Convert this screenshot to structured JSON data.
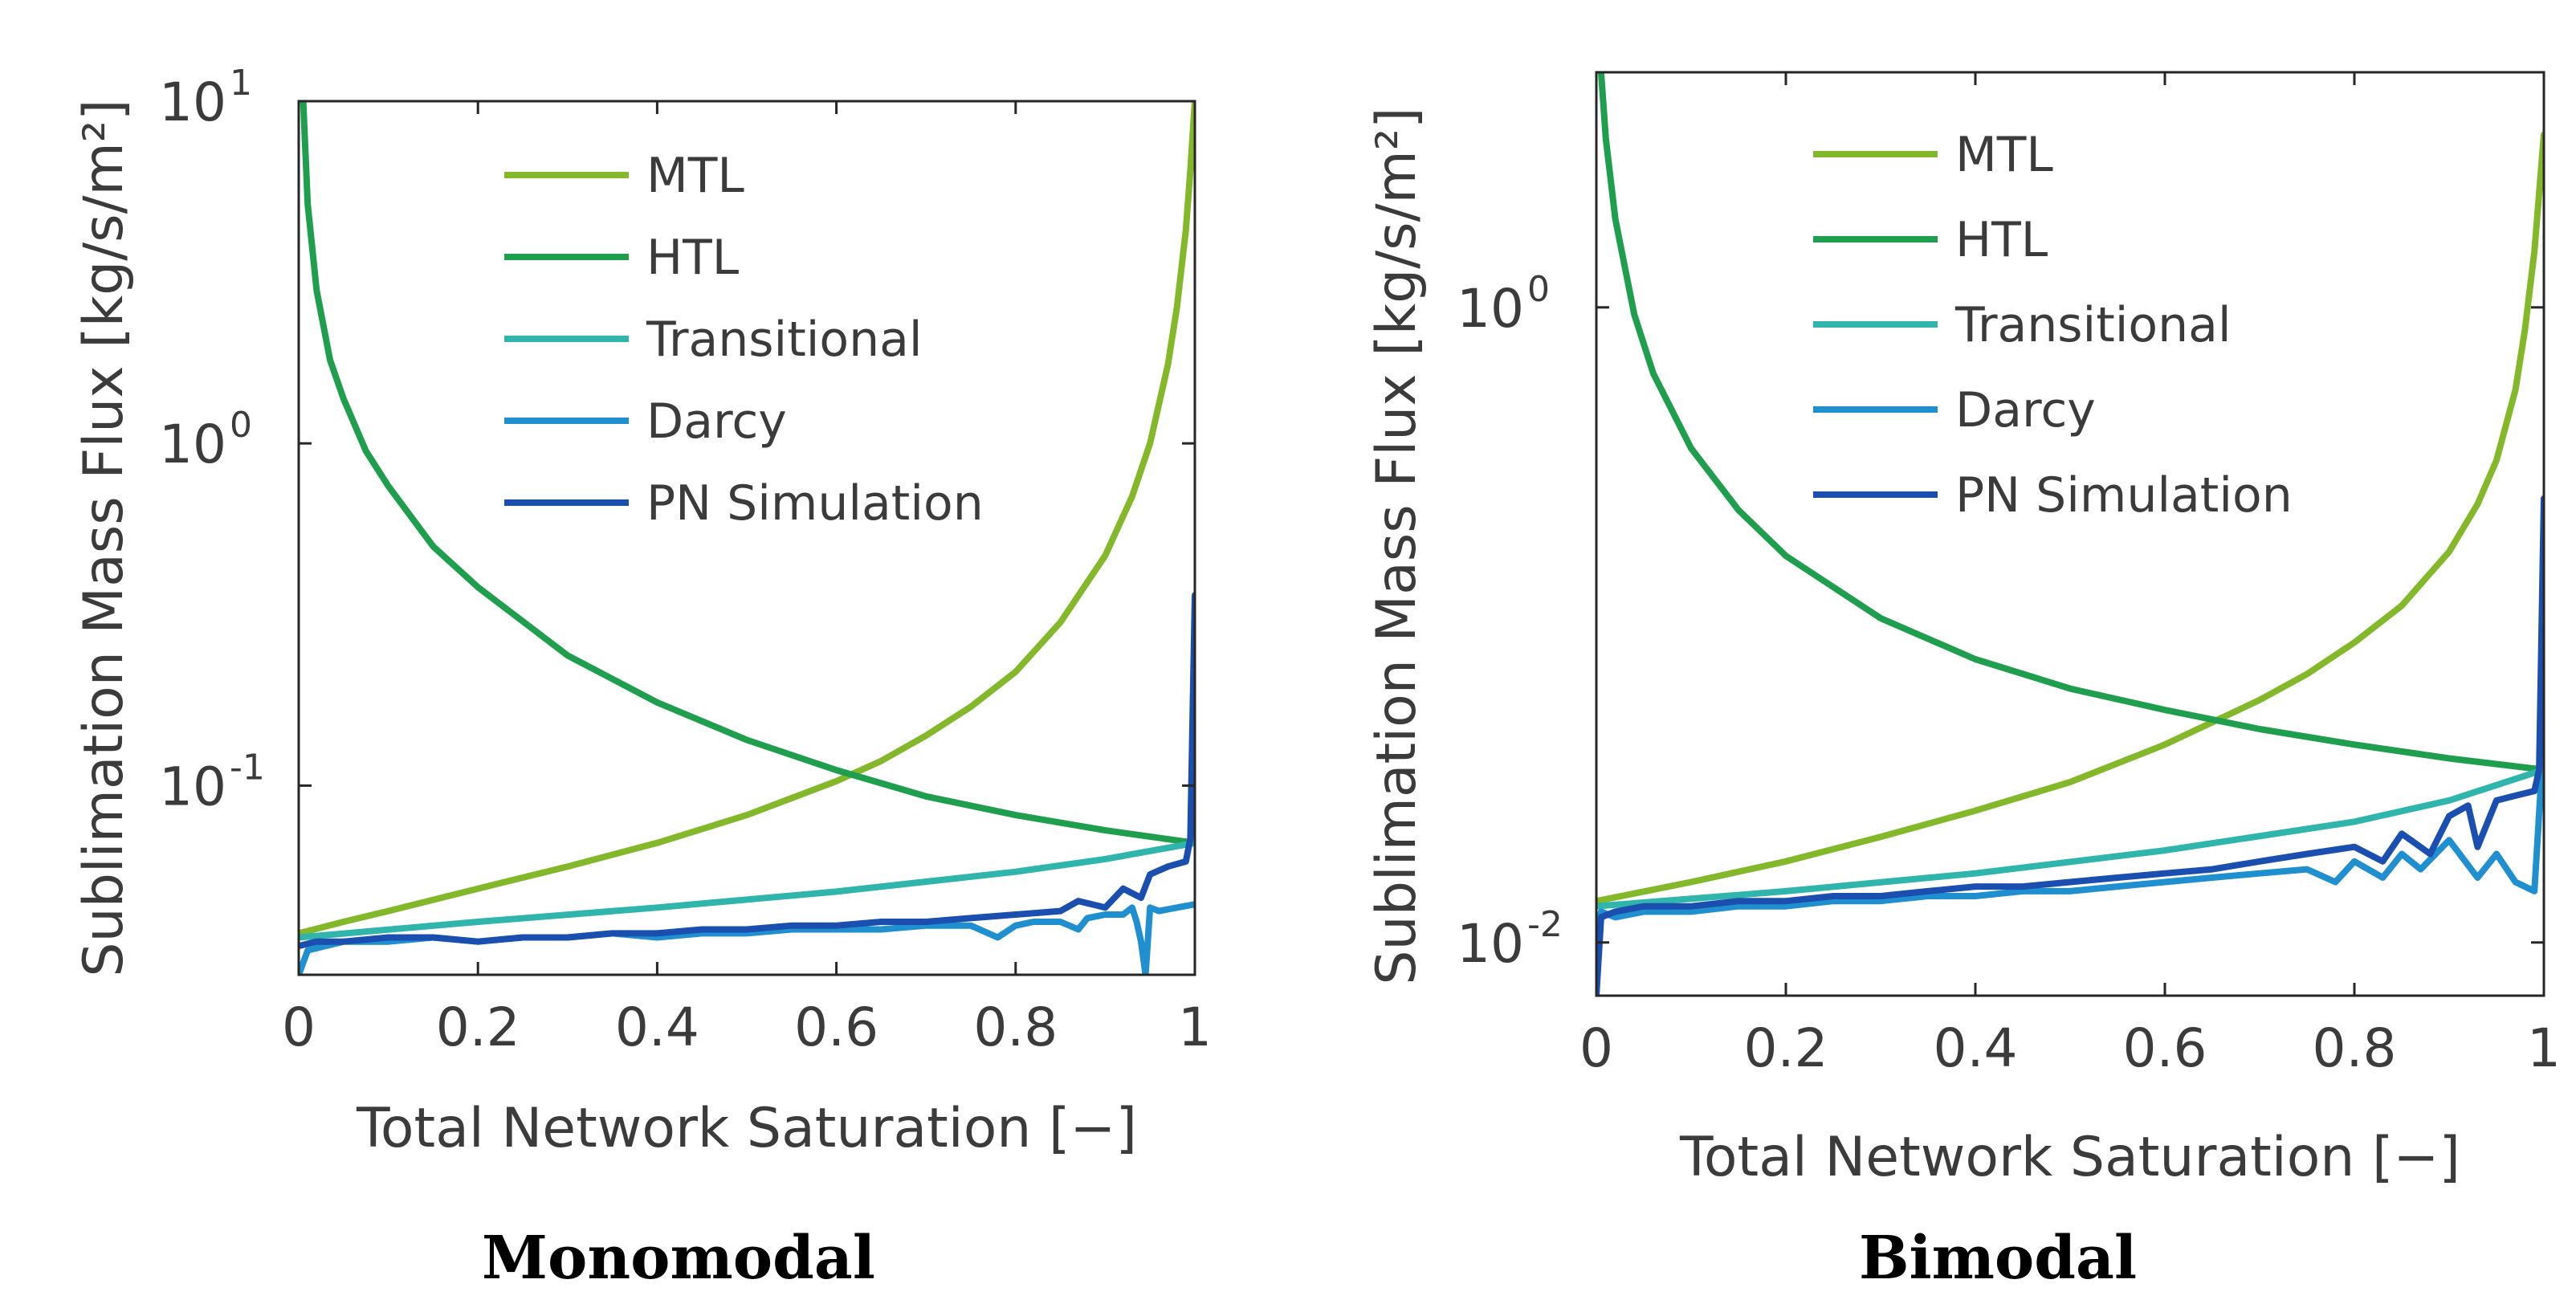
{
  "chart_data": [
    {
      "type": "line",
      "caption": "Monomodal",
      "xlabel": "Total Network Saturation [−]",
      "ylabel": "Sublimation Mass Flux [kg/s/m²]",
      "xlim": [
        0,
        1
      ],
      "ylim": [
        0.028,
        10
      ],
      "yscale": "log",
      "grid": false,
      "legend_position": "top-center",
      "x_ticks": [
        {
          "value": 0,
          "label": "0"
        },
        {
          "value": 0.2,
          "label": "0.2"
        },
        {
          "value": 0.4,
          "label": "0.4"
        },
        {
          "value": 0.6,
          "label": "0.6"
        },
        {
          "value": 0.8,
          "label": "0.8"
        },
        {
          "value": 1,
          "label": "1"
        }
      ],
      "y_ticks": [
        {
          "value": 10,
          "base": "10",
          "exp": "1"
        },
        {
          "value": 1,
          "base": "10",
          "exp": "0"
        },
        {
          "value": 0.1,
          "base": "10",
          "exp": "-1"
        }
      ],
      "series": [
        {
          "name": "MTL",
          "color": "#84b82b",
          "x": [
            0,
            0.05,
            0.1,
            0.2,
            0.3,
            0.4,
            0.5,
            0.6,
            0.65,
            0.7,
            0.75,
            0.8,
            0.85,
            0.9,
            0.93,
            0.95,
            0.97,
            0.98,
            0.99,
            0.995,
            1
          ],
          "y": [
            0.037,
            0.04,
            0.043,
            0.05,
            0.058,
            0.068,
            0.082,
            0.103,
            0.118,
            0.14,
            0.17,
            0.215,
            0.3,
            0.47,
            0.7,
            1.0,
            1.7,
            2.5,
            4.2,
            6.3,
            10
          ]
        },
        {
          "name": "HTL",
          "color": "#1f9e4d",
          "x": [
            0.005,
            0.01,
            0.02,
            0.035,
            0.05,
            0.075,
            0.1,
            0.15,
            0.2,
            0.3,
            0.4,
            0.5,
            0.6,
            0.7,
            0.8,
            0.9,
            1
          ],
          "y": [
            10,
            5.0,
            2.8,
            1.75,
            1.35,
            0.95,
            0.75,
            0.5,
            0.38,
            0.24,
            0.175,
            0.136,
            0.111,
            0.093,
            0.082,
            0.074,
            0.068
          ]
        },
        {
          "name": "Transitional",
          "color": "#2fb5ac",
          "x": [
            0,
            0.2,
            0.4,
            0.6,
            0.8,
            0.9,
            1
          ],
          "y": [
            0.036,
            0.04,
            0.044,
            0.049,
            0.056,
            0.061,
            0.068
          ]
        },
        {
          "name": "Darcy",
          "color": "#1f8fcf",
          "x": [
            0,
            0.01,
            0.03,
            0.05,
            0.1,
            0.15,
            0.2,
            0.25,
            0.3,
            0.35,
            0.4,
            0.45,
            0.5,
            0.55,
            0.6,
            0.65,
            0.7,
            0.75,
            0.78,
            0.8,
            0.82,
            0.85,
            0.87,
            0.88,
            0.9,
            0.92,
            0.93,
            0.935,
            0.94,
            0.945,
            0.95,
            0.96,
            0.98,
            1
          ],
          "y": [
            0.028,
            0.033,
            0.034,
            0.035,
            0.035,
            0.036,
            0.035,
            0.036,
            0.036,
            0.037,
            0.036,
            0.037,
            0.037,
            0.038,
            0.038,
            0.038,
            0.039,
            0.039,
            0.036,
            0.039,
            0.04,
            0.04,
            0.038,
            0.041,
            0.042,
            0.042,
            0.044,
            0.04,
            0.035,
            0.028,
            0.044,
            0.043,
            0.044,
            0.045
          ]
        },
        {
          "name": "PN Simulation",
          "color": "#1a4fb0",
          "x": [
            0,
            0.02,
            0.05,
            0.1,
            0.15,
            0.2,
            0.25,
            0.3,
            0.35,
            0.4,
            0.45,
            0.5,
            0.55,
            0.6,
            0.65,
            0.7,
            0.75,
            0.8,
            0.85,
            0.87,
            0.9,
            0.92,
            0.94,
            0.95,
            0.97,
            0.99,
            0.995,
            1
          ],
          "y": [
            0.034,
            0.035,
            0.035,
            0.036,
            0.036,
            0.035,
            0.036,
            0.036,
            0.037,
            0.037,
            0.038,
            0.038,
            0.039,
            0.039,
            0.04,
            0.04,
            0.041,
            0.042,
            0.043,
            0.046,
            0.044,
            0.05,
            0.047,
            0.055,
            0.058,
            0.06,
            0.07,
            0.36
          ]
        }
      ]
    },
    {
      "type": "line",
      "caption": "Bimodal",
      "xlabel": "Total Network Saturation [−]",
      "ylabel": "Sublimation Mass Flux [kg/s/m²]",
      "xlim": [
        0,
        1
      ],
      "ylim": [
        0.0068,
        5.5
      ],
      "yscale": "log",
      "grid": false,
      "legend_position": "top-center",
      "x_ticks": [
        {
          "value": 0,
          "label": "0"
        },
        {
          "value": 0.2,
          "label": "0.2"
        },
        {
          "value": 0.4,
          "label": "0.4"
        },
        {
          "value": 0.6,
          "label": "0.6"
        },
        {
          "value": 0.8,
          "label": "0.8"
        },
        {
          "value": 1,
          "label": "1"
        }
      ],
      "y_ticks": [
        {
          "value": 1,
          "base": "10",
          "exp": "0"
        },
        {
          "value": 0.01,
          "base": "10",
          "exp": "-2"
        }
      ],
      "series": [
        {
          "name": "MTL",
          "color": "#84b82b",
          "x": [
            0,
            0.1,
            0.2,
            0.3,
            0.4,
            0.5,
            0.6,
            0.7,
            0.75,
            0.8,
            0.85,
            0.9,
            0.93,
            0.95,
            0.97,
            0.98,
            0.99,
            1
          ],
          "y": [
            0.0135,
            0.0155,
            0.018,
            0.0215,
            0.026,
            0.032,
            0.042,
            0.058,
            0.07,
            0.088,
            0.115,
            0.17,
            0.24,
            0.33,
            0.55,
            0.85,
            1.5,
            3.5
          ]
        },
        {
          "name": "HTL",
          "color": "#1f9e4d",
          "x": [
            0.005,
            0.01,
            0.02,
            0.04,
            0.06,
            0.1,
            0.15,
            0.2,
            0.3,
            0.4,
            0.5,
            0.6,
            0.7,
            0.8,
            0.9,
            1
          ],
          "y": [
            5.5,
            3.4,
            1.9,
            0.95,
            0.62,
            0.36,
            0.23,
            0.165,
            0.105,
            0.078,
            0.063,
            0.054,
            0.047,
            0.042,
            0.038,
            0.035
          ]
        },
        {
          "name": "Transitional",
          "color": "#2fb5ac",
          "x": [
            0,
            0.2,
            0.4,
            0.6,
            0.8,
            0.9,
            1
          ],
          "y": [
            0.013,
            0.0145,
            0.0165,
            0.0195,
            0.024,
            0.028,
            0.035
          ]
        },
        {
          "name": "Darcy",
          "color": "#1f8fcf",
          "x": [
            0,
            0.005,
            0.02,
            0.05,
            0.1,
            0.15,
            0.2,
            0.25,
            0.3,
            0.35,
            0.4,
            0.45,
            0.5,
            0.55,
            0.6,
            0.65,
            0.7,
            0.75,
            0.78,
            0.8,
            0.83,
            0.85,
            0.87,
            0.9,
            0.93,
            0.95,
            0.97,
            0.99,
            1
          ],
          "y": [
            0.011,
            0.0125,
            0.012,
            0.0125,
            0.0125,
            0.013,
            0.013,
            0.0135,
            0.0135,
            0.014,
            0.014,
            0.0145,
            0.0145,
            0.015,
            0.0155,
            0.016,
            0.0165,
            0.017,
            0.0155,
            0.018,
            0.016,
            0.019,
            0.017,
            0.021,
            0.016,
            0.019,
            0.0155,
            0.0145,
            0.045
          ]
        },
        {
          "name": "PN Simulation",
          "color": "#1a4fb0",
          "x": [
            0,
            0.005,
            0.02,
            0.05,
            0.1,
            0.15,
            0.2,
            0.25,
            0.3,
            0.35,
            0.4,
            0.45,
            0.5,
            0.55,
            0.6,
            0.65,
            0.7,
            0.75,
            0.8,
            0.83,
            0.85,
            0.88,
            0.9,
            0.92,
            0.93,
            0.95,
            0.97,
            0.99,
            0.995,
            1
          ],
          "y": [
            0.0068,
            0.012,
            0.0125,
            0.013,
            0.013,
            0.0135,
            0.0135,
            0.014,
            0.014,
            0.0145,
            0.015,
            0.015,
            0.0155,
            0.016,
            0.0165,
            0.017,
            0.018,
            0.019,
            0.02,
            0.018,
            0.022,
            0.019,
            0.025,
            0.027,
            0.02,
            0.028,
            0.029,
            0.03,
            0.035,
            0.25
          ]
        }
      ]
    }
  ]
}
